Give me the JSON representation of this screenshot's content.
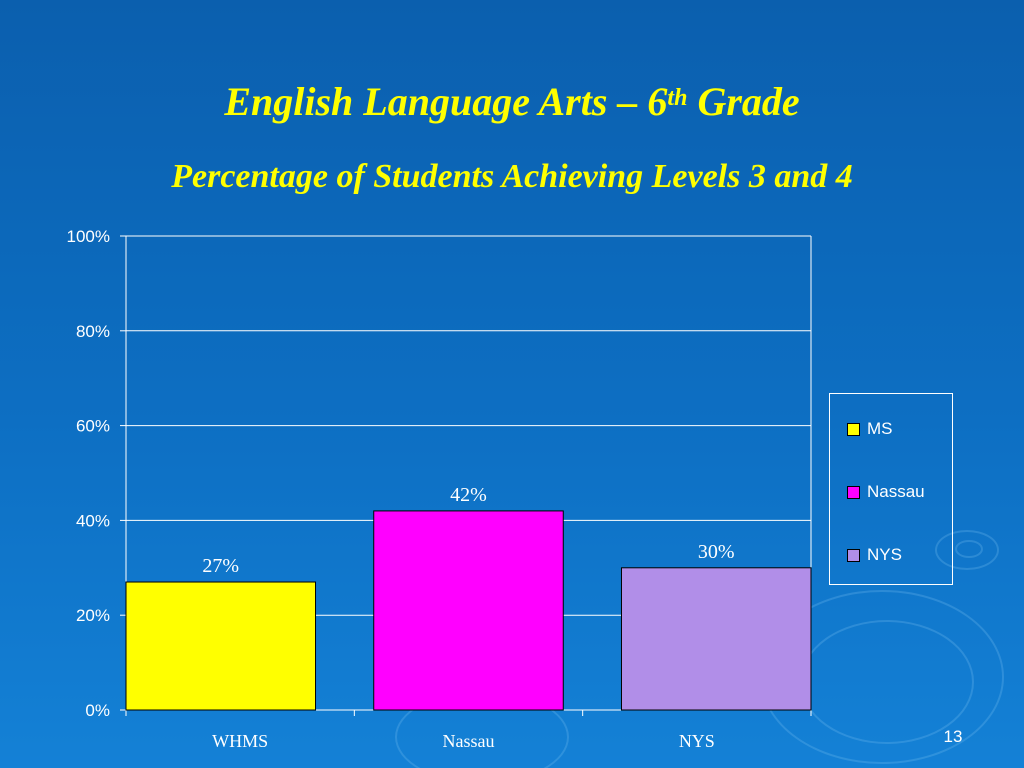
{
  "slide": {
    "title_main": "English Language Arts – 6",
    "title_sup": "th",
    "title_end": " Grade",
    "subtitle": "Percentage of Students Achieving Levels 3 and 4",
    "page_number": "13"
  },
  "chart_data": {
    "type": "bar",
    "title": "English Language Arts – 6th Grade",
    "subtitle": "Percentage of Students Achieving Levels 3 and 4",
    "categories": [
      "WHMS",
      "Nassau",
      "NYS"
    ],
    "series": [
      {
        "name": "MS",
        "category": "WHMS",
        "value": 27,
        "label": "27%",
        "color": "#ffff00"
      },
      {
        "name": "Nassau",
        "category": "Nassau",
        "value": 42,
        "label": "42%",
        "color": "#ff00ff"
      },
      {
        "name": "NYS",
        "category": "NYS",
        "value": 30,
        "label": "30%",
        "color": "#b18ee8"
      }
    ],
    "values": [
      27,
      42,
      30
    ],
    "ylim": [
      0,
      100
    ],
    "yticks": [
      0,
      20,
      40,
      60,
      80,
      100
    ],
    "ytick_labels": [
      "0%",
      "20%",
      "40%",
      "60%",
      "80%",
      "100%"
    ],
    "xlabel": "",
    "ylabel": "",
    "grid": true,
    "legend": {
      "position": "right",
      "entries": [
        "MS",
        "Nassau",
        "NYS"
      ]
    }
  },
  "colors": {
    "background": "#0d6fc3",
    "title": "#ffff00",
    "axis_text": "#ffffff",
    "gridline": "#ffffff"
  }
}
